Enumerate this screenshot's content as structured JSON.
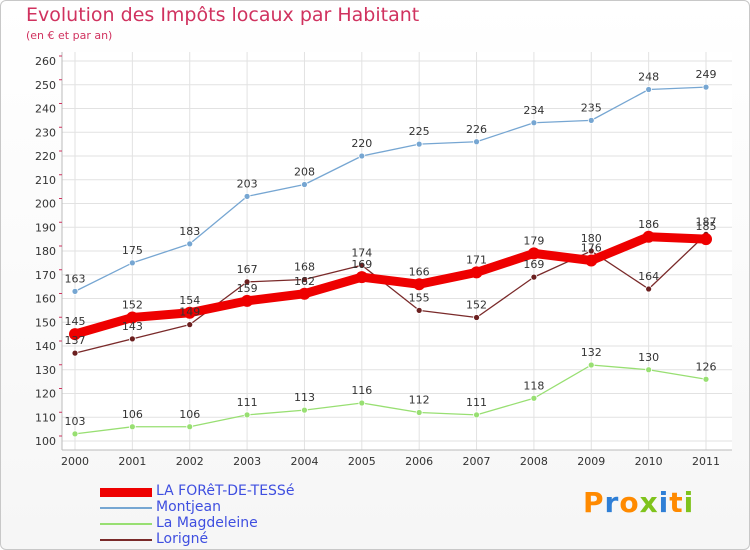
{
  "page": {
    "title": "Evolution des Impôts locaux par Habitant",
    "subtitle": "(en € et par an)",
    "brand": "Proxiti"
  },
  "chart_data": {
    "type": "line",
    "x": [
      "2000",
      "2001",
      "2002",
      "2003",
      "2004",
      "2005",
      "2006",
      "2007",
      "2008",
      "2009",
      "2010",
      "2011"
    ],
    "ylim": [
      100,
      260
    ],
    "yticks": [
      100,
      110,
      120,
      130,
      140,
      150,
      160,
      170,
      180,
      190,
      200,
      210,
      220,
      230,
      240,
      250,
      260
    ],
    "grid": true,
    "legend_position": "bottom-left",
    "series": [
      {
        "name": "LA FORêT-DE-TESSé",
        "color": "#ee0000",
        "width": 9,
        "marker": 6,
        "values": [
          145,
          152,
          154,
          159,
          162,
          169,
          166,
          171,
          179,
          176,
          186,
          185
        ]
      },
      {
        "name": "Montjean",
        "color": "#76a6d2",
        "width": 1.3,
        "marker": 3,
        "values": [
          163,
          175,
          183,
          203,
          208,
          220,
          225,
          226,
          234,
          235,
          248,
          249
        ]
      },
      {
        "name": "La Magdeleine",
        "color": "#98df72",
        "width": 1.3,
        "marker": 3,
        "values": [
          103,
          106,
          106,
          111,
          113,
          116,
          112,
          111,
          118,
          132,
          130,
          126
        ]
      },
      {
        "name": "Lorigné",
        "color": "#7a2a2a",
        "width": 1.3,
        "marker": 3,
        "values": [
          137,
          143,
          149,
          167,
          168,
          174,
          155,
          152,
          169,
          180,
          164,
          187
        ]
      }
    ]
  },
  "colors": {
    "brand_letters": [
      "#ff8a00",
      "#2f7fd6",
      "#ff8a00",
      "#7fc31c",
      "#2f7fd6",
      "#ff8a00",
      "#7fc31c"
    ]
  }
}
